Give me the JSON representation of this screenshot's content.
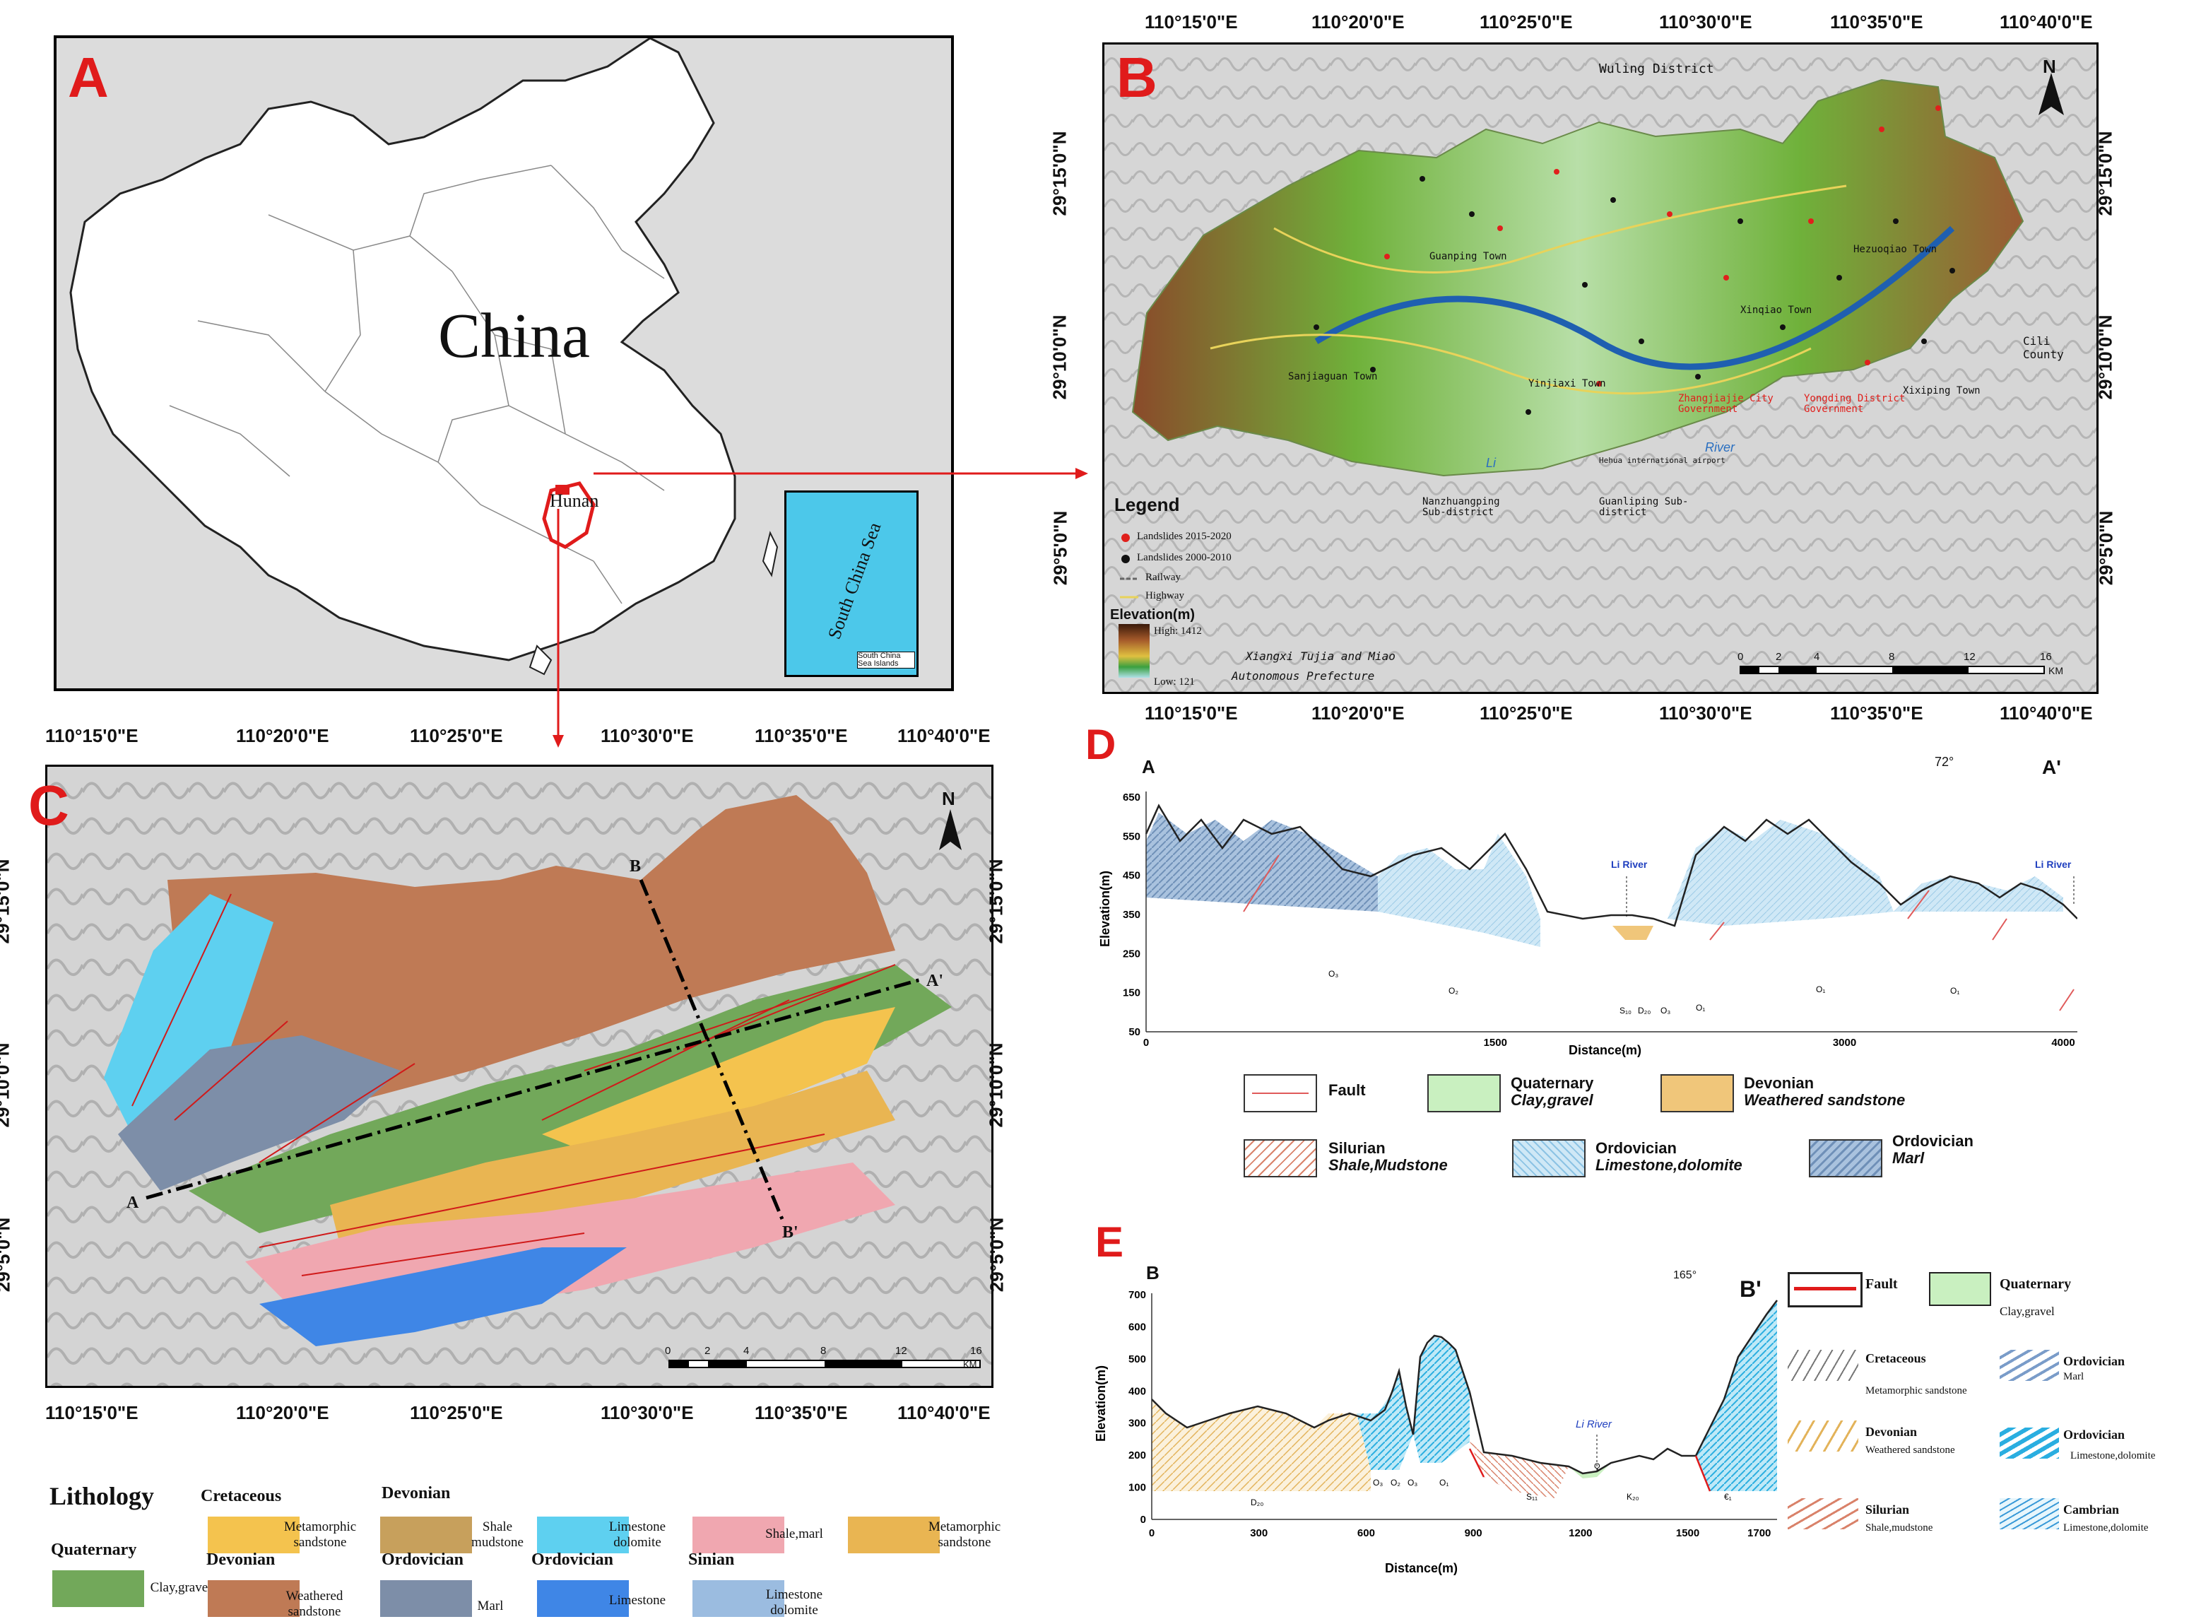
{
  "panels": {
    "a": "A",
    "b": "B",
    "c": "C",
    "d": "D",
    "e": "E"
  },
  "panel_a": {
    "country_label": "China",
    "province_label": "Hunan",
    "inset_sea_label": "South China Sea",
    "inset_islands_label": "South China Sea Islands"
  },
  "coords": {
    "lon": [
      "110°15'0\"E",
      "110°20'0\"E",
      "110°25'0\"E",
      "110°30'0\"E",
      "110°35'0\"E",
      "110°40'0\"E"
    ],
    "lat_b": [
      "29°15'0\"N",
      "29°10'0\"N",
      "29°5'0\"N"
    ],
    "lat_c": [
      "29°15'0\"N",
      "29°10'0\"N",
      "29°5'0\"N"
    ]
  },
  "panel_b": {
    "places": [
      "Wuling District",
      "Guanping Town",
      "Hezuoqiao Town",
      "Xinqiao Town",
      "Sanjiaguan Town",
      "Yinjiaxi Town",
      "Zhangjiajie City Government",
      "Yongding District Government",
      "Xixiping Town",
      "Cili County",
      "Li",
      "River",
      "Hehua international airport",
      "Nanzhuangping Sub-district",
      "Guanliping Sub-district",
      "Xiangxi Tujia and Miao",
      "Autonomous Prefecture"
    ],
    "legend_title": "Legend",
    "legend_items": [
      "Landslides 2015-2020",
      "Landslides 2000-2010",
      "Railway",
      "Highway"
    ],
    "elevation_title": "Elevation(m)",
    "elevation_high": "High: 1412",
    "elevation_low": "Low: 121",
    "north": "N",
    "scale_ticks": [
      "0",
      "2",
      "4",
      "8",
      "12",
      "16"
    ],
    "scale_unit": "KM",
    "colors": {
      "landslide_2015": "#e0201c",
      "landslide_2000": "#111111",
      "highway": "#e8d35a",
      "river": "#1f5fb0"
    }
  },
  "panel_c": {
    "labels": {
      "a": "A",
      "a_prime": "A'",
      "b": "B",
      "b_prime": "B'"
    },
    "north": "N",
    "scale_ticks": [
      "0",
      "2",
      "4",
      "8",
      "12",
      "16"
    ],
    "scale_unit": "KM"
  },
  "lithology": {
    "title": "Lithology",
    "groups": [
      {
        "head": "Quaternary",
        "items": [
          {
            "text": "Clay,gravel",
            "color": "#72a85a"
          }
        ]
      },
      {
        "head": "Cretaceous",
        "items": [
          {
            "text": "Metamorphic sandstone",
            "color": "#f4c34e"
          }
        ]
      },
      {
        "head": "Devonian",
        "items": [
          {
            "text": "Weathered sandstone",
            "color": "#bf7a55"
          }
        ]
      },
      {
        "head": "Devonian",
        "items": [
          {
            "text": "Shale mudstone",
            "color": "#c7a05c"
          }
        ]
      },
      {
        "head": "Ordovician",
        "items": [
          {
            "text": "Marl",
            "color": "#7d8ea8"
          }
        ]
      },
      {
        "head": "",
        "items": [
          {
            "text": "Limestone dolomite",
            "color": "#5ed0f0"
          }
        ]
      },
      {
        "head": "Ordovician",
        "items": [
          {
            "text": "Limestone",
            "color": "#3f86e6"
          }
        ]
      },
      {
        "head": "",
        "items": [
          {
            "text": "Shale,marl",
            "color": "#f0a7b0"
          }
        ]
      },
      {
        "head": "Sinian",
        "items": [
          {
            "text": "Limestone dolomite",
            "color": "#9bbce0"
          }
        ]
      },
      {
        "head": "",
        "items": [
          {
            "text": "Metamorphic sandstone",
            "color": "#e9b552"
          }
        ]
      }
    ]
  },
  "panel_d": {
    "start_label": "A",
    "end_label": "A'",
    "azimuth": "72°",
    "ylabel": "Elevation(m)",
    "xlabel": "Distance(m)",
    "yticks": [
      "650",
      "550",
      "450",
      "350",
      "250",
      "150",
      "50"
    ],
    "xticks": [
      "0",
      "1500",
      "3000",
      "4000"
    ],
    "river_labels": [
      "Li River",
      "Li River"
    ],
    "unit_labels": [
      "O₃",
      "O₂",
      "S₁₀",
      "D₂₀",
      "O₃",
      "O₁",
      "O₁",
      "O₁"
    ],
    "legend": [
      {
        "head": "Fault",
        "sub": ""
      },
      {
        "head": "Quaternary",
        "sub": "Clay,gravel"
      },
      {
        "head": "Devonian",
        "sub": "Weathered sandstone"
      },
      {
        "head": "Silurian",
        "sub": "Shale,Mudstone"
      },
      {
        "head": "Ordovician",
        "sub": "Limestone,dolomite"
      },
      {
        "head": "Ordovician",
        "sub": "Marl"
      }
    ]
  },
  "panel_e": {
    "start_label": "B",
    "end_label": "B'",
    "azimuth": "165°",
    "ylabel": "Elevation(m)",
    "xlabel": "Distance(m)",
    "yticks": [
      "700",
      "600",
      "500",
      "400",
      "300",
      "200",
      "100",
      "0"
    ],
    "xticks": [
      "0",
      "300",
      "600",
      "900",
      "1200",
      "1500",
      "1700"
    ],
    "river_label": "Li River",
    "unit_labels": [
      "D₂₀",
      "O₃",
      "O₂",
      "O₃",
      "O₁",
      "S₁₁",
      "K₂₀",
      "€₁",
      "Q"
    ],
    "legend": [
      {
        "head": "Fault",
        "sub": ""
      },
      {
        "head": "Quaternary",
        "sub": "Clay,gravel"
      },
      {
        "head": "Cretaceous",
        "sub": "Metamorphic sandstone"
      },
      {
        "head": "Ordovician",
        "sub": "Marl"
      },
      {
        "head": "Devonian",
        "sub": "Weathered sandstone"
      },
      {
        "head": "Ordovician",
        "sub": "Limestone,dolomite"
      },
      {
        "head": "Silurian",
        "sub": "Shale,mudstone"
      },
      {
        "head": "Cambrian",
        "sub": "Limestone,dolomite"
      }
    ]
  }
}
